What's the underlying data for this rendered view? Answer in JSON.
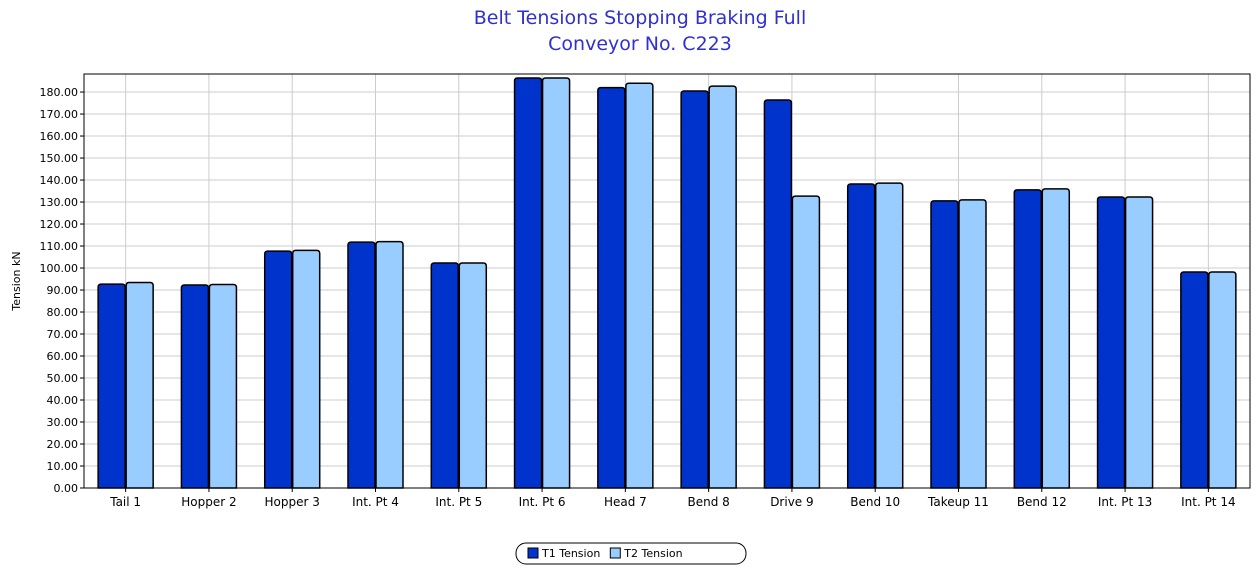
{
  "chart_data": {
    "type": "bar",
    "title": "Belt Tensions Stopping Braking Full",
    "subtitle": "Conveyor No. C223",
    "y_label": "Tension kN",
    "categories": [
      "Tail 1",
      "Hopper 2",
      "Hopper 3",
      "Int. Pt 4",
      "Int. Pt 5",
      "Int. Pt 6",
      "Head 7",
      "Bend 8",
      "Drive 9",
      "Bend 10",
      "Takeup 11",
      "Bend 12",
      "Int. Pt 13",
      "Int. Pt 14"
    ],
    "series": [
      {
        "name": "T1 Tension",
        "color": "#0033cc",
        "values": [
          92.7,
          92.3,
          107.7,
          111.8,
          102.3,
          186.4,
          182,
          180.5,
          176.4,
          138.2,
          130.5,
          135.5,
          132.3,
          98.2
        ]
      },
      {
        "name": "T2 Tension",
        "color": "#99ccff",
        "values": [
          93.4,
          92.5,
          108,
          112,
          102.3,
          186.4,
          184,
          182.7,
          132.7,
          138.6,
          131,
          136,
          132.3,
          98.2
        ]
      }
    ],
    "ylim": [
      0,
      188.2
    ],
    "yticks": [
      {
        "value": 0,
        "label": "0.00"
      },
      {
        "value": 10,
        "label": "10.00"
      },
      {
        "value": 20,
        "label": "20.00"
      },
      {
        "value": 30,
        "label": "30.00"
      },
      {
        "value": 40,
        "label": "40.00"
      },
      {
        "value": 50,
        "label": "50.00"
      },
      {
        "value": 60,
        "label": "60.00"
      },
      {
        "value": 70,
        "label": "70.00"
      },
      {
        "value": 80,
        "label": "80.00"
      },
      {
        "value": 90,
        "label": "90.00"
      },
      {
        "value": 100,
        "label": "100.00"
      },
      {
        "value": 110,
        "label": "110.00"
      },
      {
        "value": 120,
        "label": "120.00"
      },
      {
        "value": 130,
        "label": "130.00"
      },
      {
        "value": 140,
        "label": "140.00"
      },
      {
        "value": 150,
        "label": "150.00"
      },
      {
        "value": 160,
        "label": "160.00"
      },
      {
        "value": 170,
        "label": "170.00"
      },
      {
        "value": 180,
        "label": "180.00"
      }
    ],
    "grid": true,
    "legend": "bottom"
  }
}
